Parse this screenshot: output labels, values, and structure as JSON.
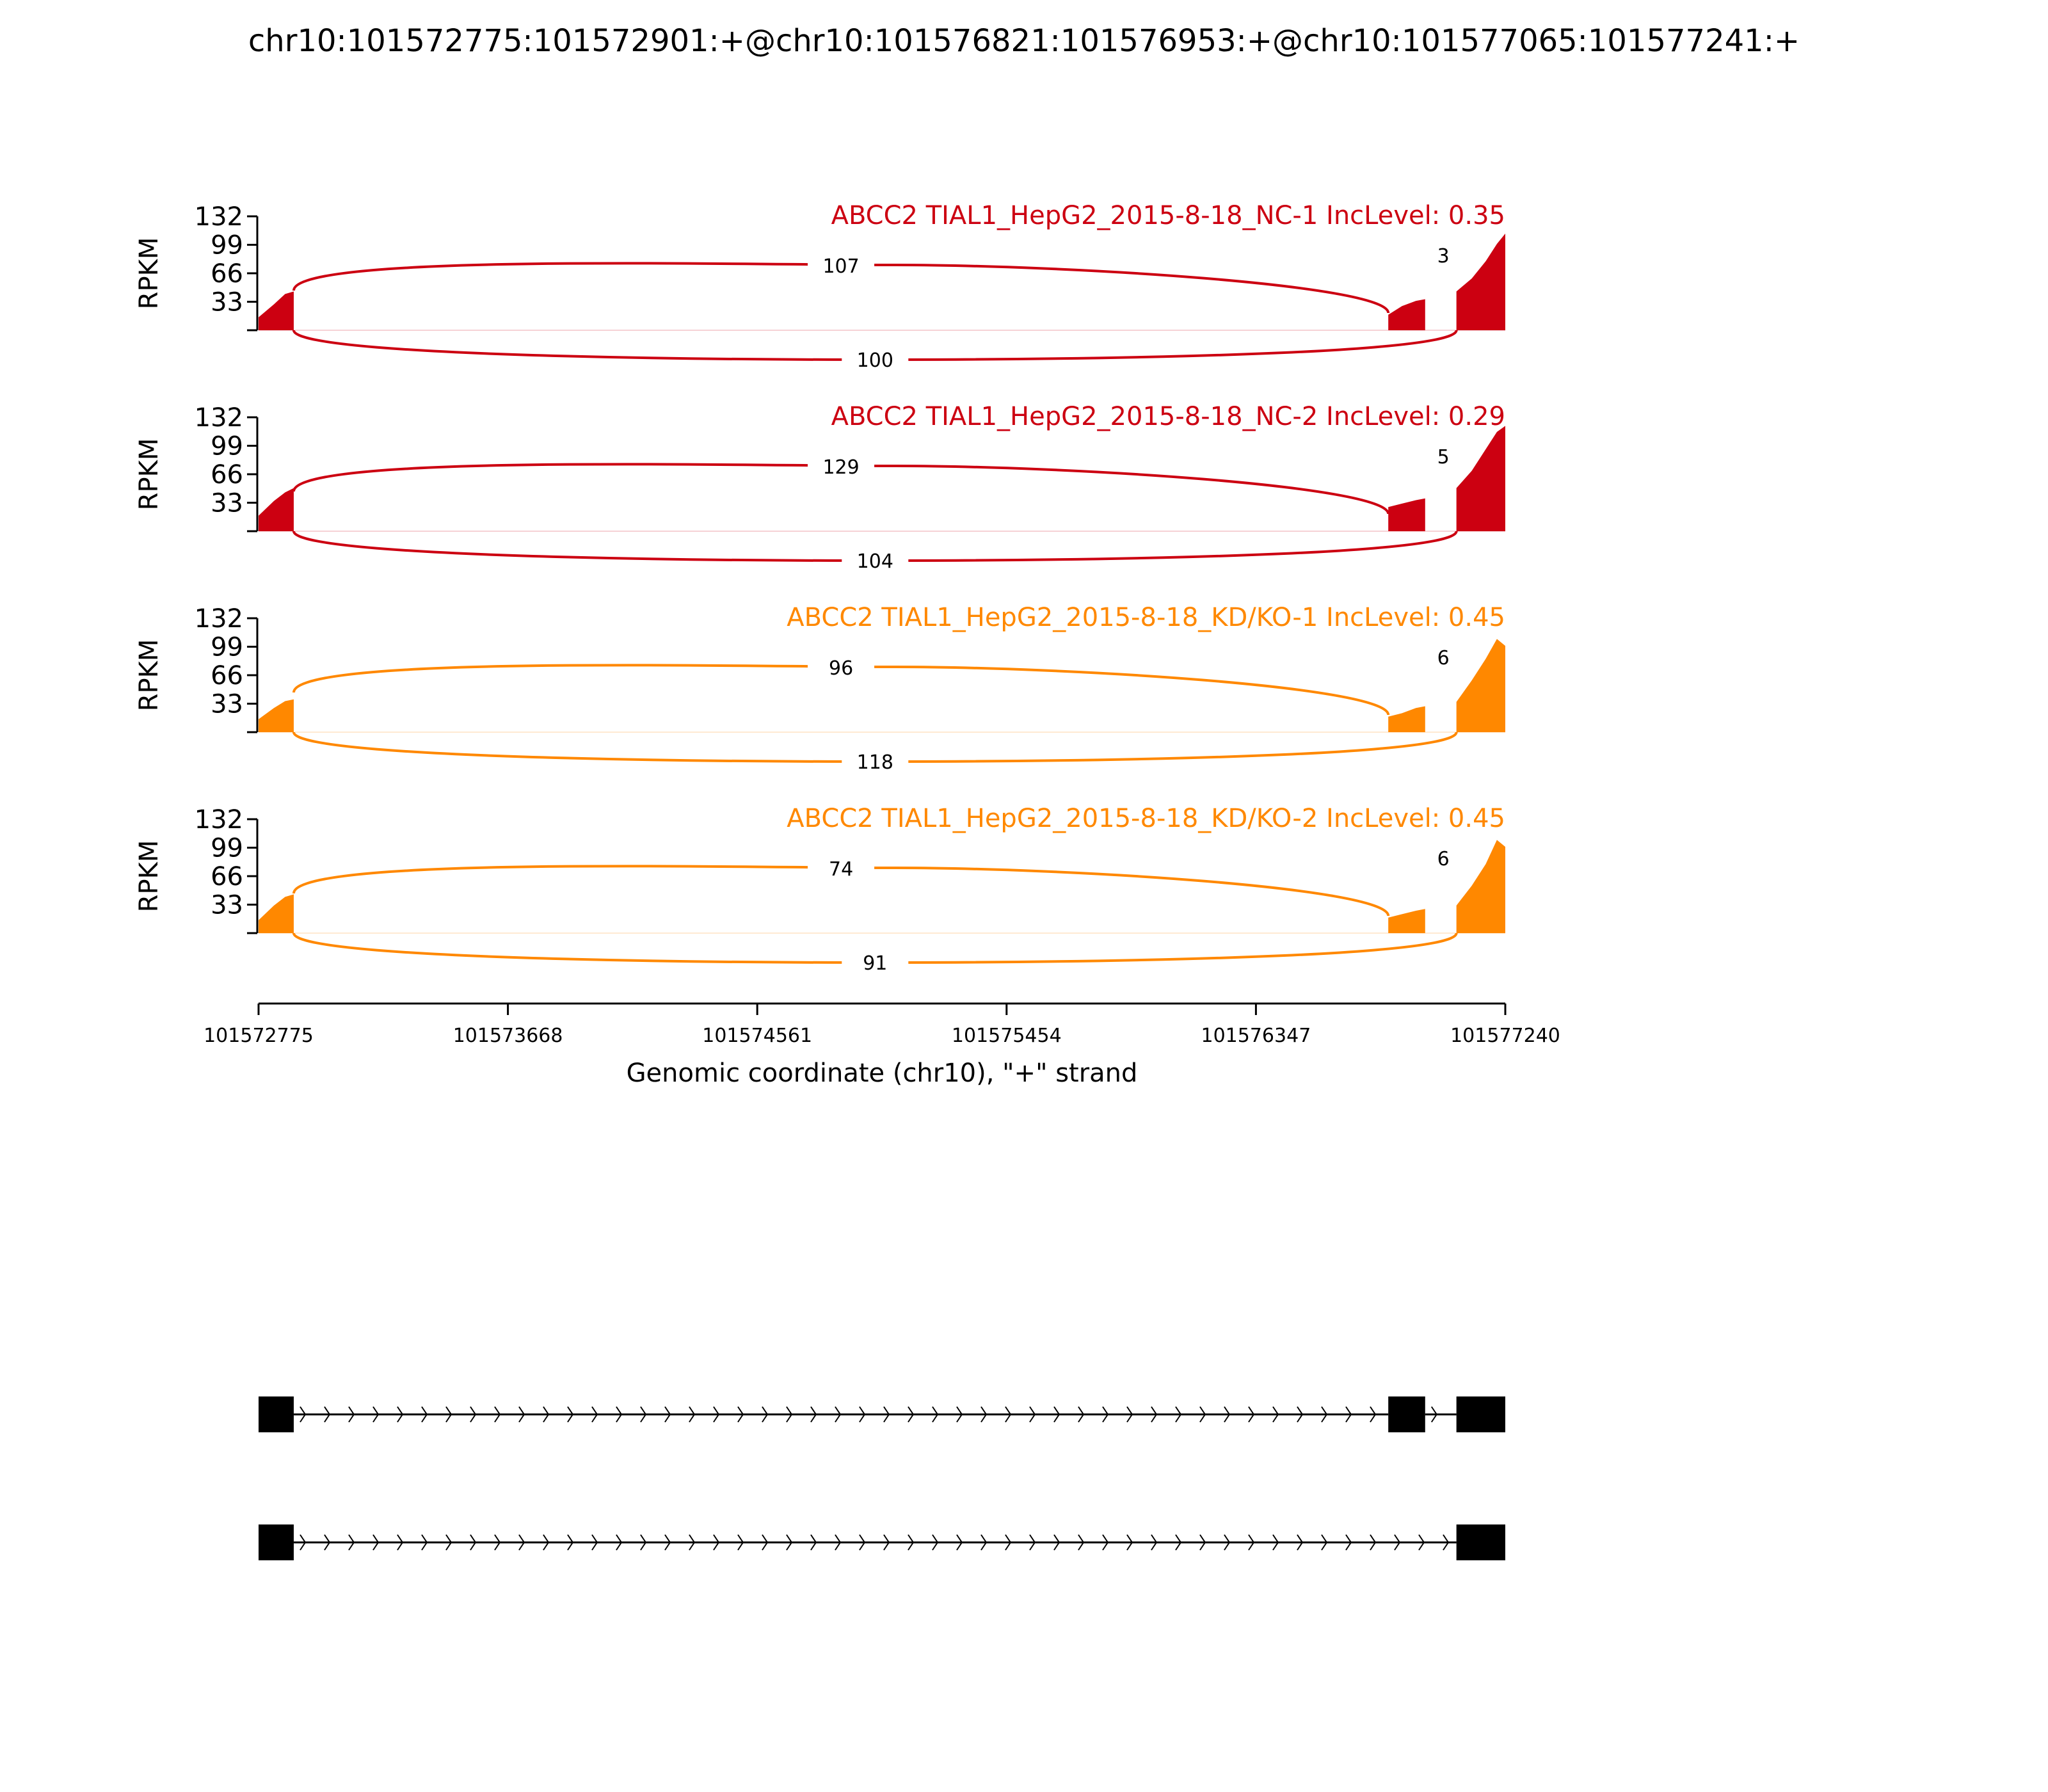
{
  "figure": {
    "title": "chr10:101572775:101572901:+@chr10:101576821:101576953:+@chr10:101577065:101577241:+"
  },
  "colors": {
    "nc": "#cc0011",
    "kd": "#ff8800",
    "axis": "#000000",
    "gene": "#000000"
  },
  "chart_data": {
    "type": "area",
    "subtype": "sashimi",
    "xlabel": "Genomic coordinate (chr10), \"+\" strand",
    "xlim": [
      101572775,
      101577240
    ],
    "x_ticks": [
      101572775,
      101573668,
      101574561,
      101575454,
      101576347,
      101577240
    ],
    "x_tick_labels": [
      "101572775",
      "101573668",
      "101574561",
      "101575454",
      "101576347",
      "101577240"
    ],
    "ylabel": "RPKM",
    "ylim": [
      0,
      132
    ],
    "y_ticks": [
      33,
      66,
      99,
      132
    ],
    "y_tick_labels": [
      "33",
      "66",
      "99",
      "132"
    ],
    "exons": [
      [
        101572775,
        101572901
      ],
      [
        101576821,
        101576953
      ],
      [
        101577065,
        101577241
      ]
    ],
    "tracks": [
      {
        "label": "ABCC2 TIAL1_HepG2_2015-8-18_NC-1 IncLevel: 0.35",
        "color_key": "nc",
        "exon1_coverage": [
          [
            101572775,
            15
          ],
          [
            101572830,
            30
          ],
          [
            101572870,
            42
          ],
          [
            101572901,
            45
          ]
        ],
        "exon2_coverage": [
          [
            101576821,
            18
          ],
          [
            101576870,
            28
          ],
          [
            101576920,
            34
          ],
          [
            101576953,
            36
          ]
        ],
        "exon3_coverage": [
          [
            101577065,
            45
          ],
          [
            101577120,
            60
          ],
          [
            101577170,
            80
          ],
          [
            101577210,
            100
          ],
          [
            101577240,
            112
          ]
        ],
        "junctions": [
          {
            "from": 101572901,
            "to": 101576821,
            "count": "107",
            "side": "above"
          },
          {
            "from": 101576953,
            "to": 101577065,
            "count": "3",
            "side": "above"
          },
          {
            "from": 101572901,
            "to": 101577065,
            "count": "100",
            "side": "below"
          }
        ]
      },
      {
        "label": "ABCC2 TIAL1_HepG2_2015-8-18_NC-2 IncLevel: 0.29",
        "color_key": "nc",
        "exon1_coverage": [
          [
            101572775,
            18
          ],
          [
            101572830,
            35
          ],
          [
            101572870,
            45
          ],
          [
            101572901,
            50
          ]
        ],
        "exon2_coverage": [
          [
            101576821,
            28
          ],
          [
            101576870,
            32
          ],
          [
            101576920,
            36
          ],
          [
            101576953,
            38
          ]
        ],
        "exon3_coverage": [
          [
            101577065,
            50
          ],
          [
            101577120,
            70
          ],
          [
            101577170,
            95
          ],
          [
            101577210,
            115
          ],
          [
            101577240,
            122
          ]
        ],
        "junctions": [
          {
            "from": 101572901,
            "to": 101576821,
            "count": "129",
            "side": "above"
          },
          {
            "from": 101576953,
            "to": 101577065,
            "count": "5",
            "side": "above"
          },
          {
            "from": 101572901,
            "to": 101577065,
            "count": "104",
            "side": "below"
          }
        ]
      },
      {
        "label": "ABCC2 TIAL1_HepG2_2015-8-18_KD/KO-1 IncLevel: 0.45",
        "color_key": "kd",
        "exon1_coverage": [
          [
            101572775,
            15
          ],
          [
            101572830,
            28
          ],
          [
            101572870,
            36
          ],
          [
            101572901,
            38
          ]
        ],
        "exon2_coverage": [
          [
            101576821,
            18
          ],
          [
            101576870,
            22
          ],
          [
            101576920,
            28
          ],
          [
            101576953,
            30
          ]
        ],
        "exon3_coverage": [
          [
            101577065,
            35
          ],
          [
            101577120,
            60
          ],
          [
            101577170,
            85
          ],
          [
            101577210,
            108
          ],
          [
            101577240,
            100
          ]
        ],
        "junctions": [
          {
            "from": 101572901,
            "to": 101576821,
            "count": "96",
            "side": "above"
          },
          {
            "from": 101576953,
            "to": 101577065,
            "count": "6",
            "side": "above"
          },
          {
            "from": 101572901,
            "to": 101577065,
            "count": "118",
            "side": "below"
          }
        ]
      },
      {
        "label": "ABCC2 TIAL1_HepG2_2015-8-18_KD/KO-2 IncLevel: 0.45",
        "color_key": "kd",
        "exon1_coverage": [
          [
            101572775,
            15
          ],
          [
            101572830,
            32
          ],
          [
            101572870,
            42
          ],
          [
            101572901,
            45
          ]
        ],
        "exon2_coverage": [
          [
            101576821,
            18
          ],
          [
            101576870,
            22
          ],
          [
            101576920,
            26
          ],
          [
            101576953,
            28
          ]
        ],
        "exon3_coverage": [
          [
            101577065,
            32
          ],
          [
            101577120,
            55
          ],
          [
            101577170,
            80
          ],
          [
            101577210,
            108
          ],
          [
            101577240,
            100
          ]
        ],
        "junctions": [
          {
            "from": 101572901,
            "to": 101576821,
            "count": "74",
            "side": "above"
          },
          {
            "from": 101576953,
            "to": 101577065,
            "count": "6",
            "side": "above"
          },
          {
            "from": 101572901,
            "to": 101577065,
            "count": "91",
            "side": "below"
          }
        ]
      }
    ],
    "isoforms": [
      {
        "exons": [
          [
            101572775,
            101572901
          ],
          [
            101576821,
            101576953
          ],
          [
            101577065,
            101577241
          ]
        ]
      },
      {
        "exons": [
          [
            101572775,
            101572901
          ],
          [
            101577065,
            101577241
          ]
        ]
      }
    ]
  }
}
